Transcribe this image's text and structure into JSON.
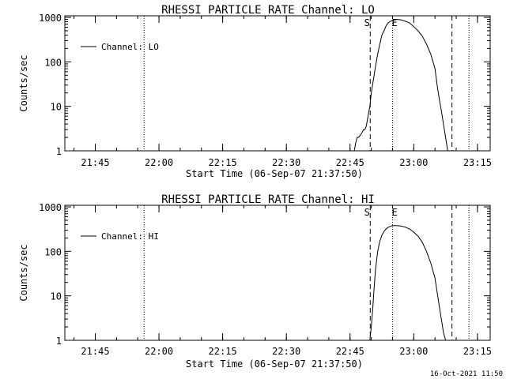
{
  "footer": {
    "timestamp": "16-Oct-2021 11:50"
  },
  "chart_data": [
    {
      "type": "line",
      "title": "RHESSI PARTICLE_RATE Channel: LO",
      "xlabel": "Start Time (06-Sep-07 21:37:50)",
      "ylabel": "Counts/sec",
      "yscale": "log",
      "ylim": [
        1,
        1000
      ],
      "yticks": [
        {
          "v": 1000,
          "label": "1000"
        },
        {
          "v": 100,
          "label": "100"
        },
        {
          "v": 10,
          "label": "10"
        },
        {
          "v": 1,
          "label": "1"
        }
      ],
      "xlim": [
        "21:37:50",
        "23:18:00"
      ],
      "xticks": [
        "21:45",
        "22:00",
        "22:15",
        "22:30",
        "22:45",
        "23:00",
        "23:15"
      ],
      "legend": {
        "placement": "top-left",
        "label": "Channel: LO"
      },
      "grid": false,
      "vlines": [
        {
          "t": "21:56:30",
          "style": "dotted"
        },
        {
          "t": "22:49:45",
          "style": "dashed"
        },
        {
          "t": "22:55:00",
          "style": "dotted"
        },
        {
          "t": "23:09:00",
          "style": "dashed"
        },
        {
          "t": "23:13:00",
          "style": "dotted"
        }
      ],
      "markers": [
        {
          "label": "S",
          "t": "22:49:00"
        },
        {
          "label": "E",
          "t": "22:55:30"
        }
      ],
      "series": [
        {
          "x": [
            "22:46:00",
            "22:46:20",
            "22:46:40",
            "22:47:00",
            "22:47:30",
            "22:47:50",
            "22:48:10",
            "22:48:30",
            "22:48:50",
            "22:49:10",
            "22:49:40",
            "22:50:00",
            "22:50:30",
            "22:51:00",
            "22:51:30",
            "22:52:00",
            "22:52:30",
            "22:53:00",
            "22:53:30",
            "22:54:00",
            "22:54:30",
            "22:55:00",
            "22:55:30",
            "22:56:00",
            "22:57:00",
            "22:58:00",
            "22:59:00",
            "23:00:00",
            "23:01:00",
            "23:02:00",
            "23:03:00",
            "23:04:00",
            "23:05:00",
            "23:05:30",
            "23:06:00",
            "23:06:30",
            "23:07:00",
            "23:07:30",
            "23:08:00"
          ],
          "y": [
            1,
            1.5,
            2,
            2,
            2.3,
            2.6,
            3,
            3,
            3.6,
            5.5,
            10,
            20,
            40,
            80,
            150,
            250,
            400,
            500,
            650,
            750,
            820,
            850,
            880,
            900,
            880,
            820,
            750,
            620,
            500,
            380,
            250,
            150,
            70,
            30,
            15,
            8,
            4,
            2,
            1
          ]
        }
      ]
    },
    {
      "type": "line",
      "title": "RHESSI PARTICLE_RATE Channel: HI",
      "xlabel": "Start Time (06-Sep-07 21:37:50)",
      "ylabel": "Counts/sec",
      "yscale": "log",
      "ylim": [
        1,
        1000
      ],
      "yticks": [
        {
          "v": 1000,
          "label": "1000"
        },
        {
          "v": 100,
          "label": "100"
        },
        {
          "v": 10,
          "label": "10"
        },
        {
          "v": 1,
          "label": "1"
        }
      ],
      "xlim": [
        "21:37:50",
        "23:18:00"
      ],
      "xticks": [
        "21:45",
        "22:00",
        "22:15",
        "22:30",
        "22:45",
        "23:00",
        "23:15"
      ],
      "legend": {
        "placement": "top-left",
        "label": "Channel: HI"
      },
      "grid": false,
      "vlines": [
        {
          "t": "21:56:30",
          "style": "dotted"
        },
        {
          "t": "22:49:45",
          "style": "dashed"
        },
        {
          "t": "22:55:00",
          "style": "dotted"
        },
        {
          "t": "23:09:00",
          "style": "dashed"
        },
        {
          "t": "23:13:00",
          "style": "dotted"
        }
      ],
      "markers": [
        {
          "label": "S",
          "t": "22:49:00"
        },
        {
          "label": "E",
          "t": "22:55:30"
        }
      ],
      "series": [
        {
          "x": [
            "22:49:40",
            "22:50:00",
            "22:50:20",
            "22:50:40",
            "22:51:00",
            "22:51:30",
            "22:52:00",
            "22:52:30",
            "22:53:00",
            "22:53:30",
            "22:54:00",
            "22:55:00",
            "22:56:00",
            "22:57:00",
            "22:58:00",
            "22:59:00",
            "23:00:00",
            "23:01:00",
            "23:02:00",
            "23:03:00",
            "23:04:00",
            "23:05:00",
            "23:05:30",
            "23:06:00",
            "23:06:30",
            "23:07:00",
            "23:07:30"
          ],
          "y": [
            1,
            2,
            5,
            15,
            40,
            100,
            170,
            230,
            280,
            320,
            350,
            380,
            380,
            370,
            350,
            320,
            270,
            220,
            160,
            100,
            55,
            25,
            12,
            6,
            3,
            1.5,
            1
          ]
        }
      ]
    }
  ]
}
